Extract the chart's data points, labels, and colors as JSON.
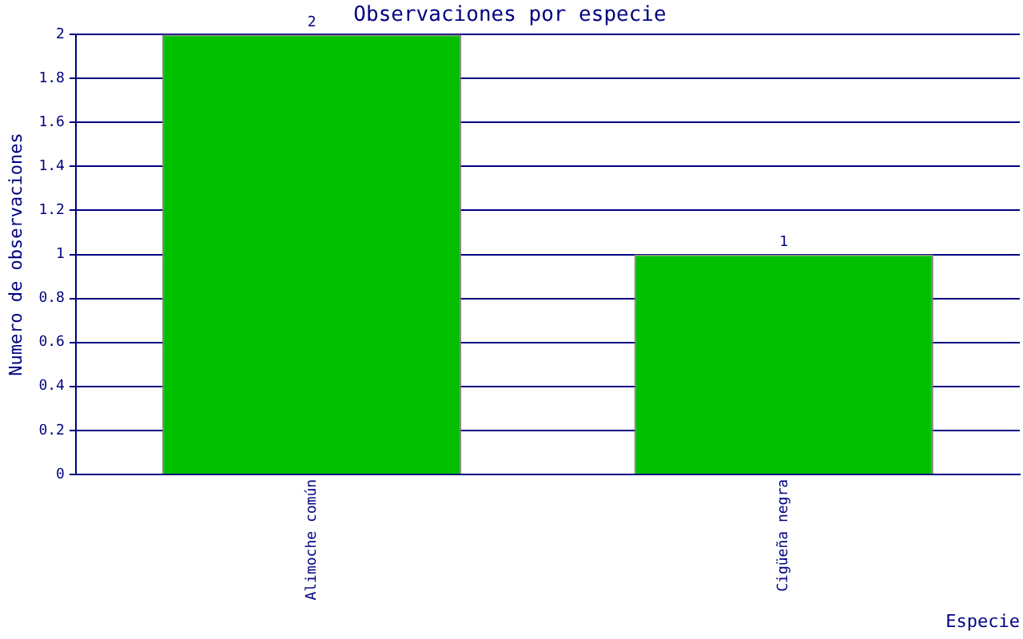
{
  "chart_data": {
    "type": "bar",
    "title": "Observaciones por especie",
    "xlabel": "Especie",
    "ylabel": "Numero de observaciones",
    "categories": [
      "Alimoche común",
      "Cigüeña negra"
    ],
    "values": [
      2,
      1
    ],
    "color": "#00c000",
    "ylim": [
      0,
      2
    ],
    "yticks": [
      0,
      0.2,
      0.4,
      0.6,
      0.8,
      1,
      1.2,
      1.4,
      1.6,
      1.8,
      2
    ],
    "grid": "y",
    "legend": false,
    "data_labels": true
  }
}
